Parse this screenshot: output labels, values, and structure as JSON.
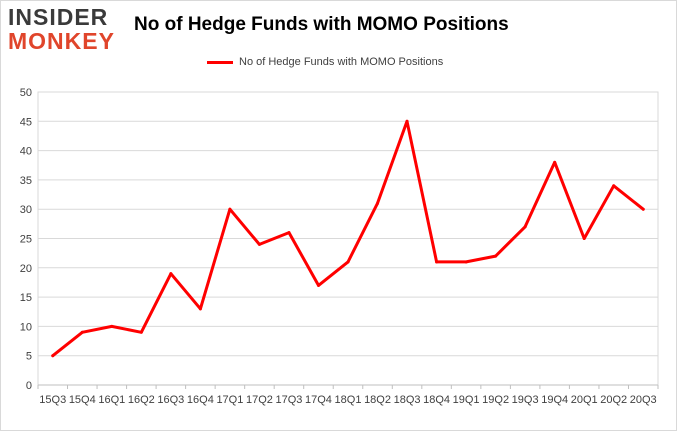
{
  "logo": {
    "line1": "INSIDER",
    "line2": "MONKEY"
  },
  "chart_data": {
    "type": "line",
    "title": "No of Hedge Funds with MOMO Positions",
    "xlabel": "",
    "ylabel": "",
    "ylim": [
      0,
      50
    ],
    "yticks": [
      0,
      5,
      10,
      15,
      20,
      25,
      30,
      35,
      40,
      45,
      50
    ],
    "grid": true,
    "legend_position": "top-center",
    "categories": [
      "15Q3",
      "15Q4",
      "16Q1",
      "16Q2",
      "16Q3",
      "16Q4",
      "17Q1",
      "17Q2",
      "17Q3",
      "17Q4",
      "18Q1",
      "18Q2",
      "18Q3",
      "18Q4",
      "19Q1",
      "19Q2",
      "19Q3",
      "19Q4",
      "20Q1",
      "20Q2",
      "20Q3"
    ],
    "series": [
      {
        "name": "No of Hedge Funds with MOMO Positions",
        "color": "#ff0000",
        "values": [
          5,
          9,
          10,
          9,
          19,
          13,
          30,
          24,
          26,
          17,
          21,
          31,
          45,
          21,
          21,
          22,
          27,
          38,
          25,
          34,
          30
        ]
      }
    ]
  }
}
